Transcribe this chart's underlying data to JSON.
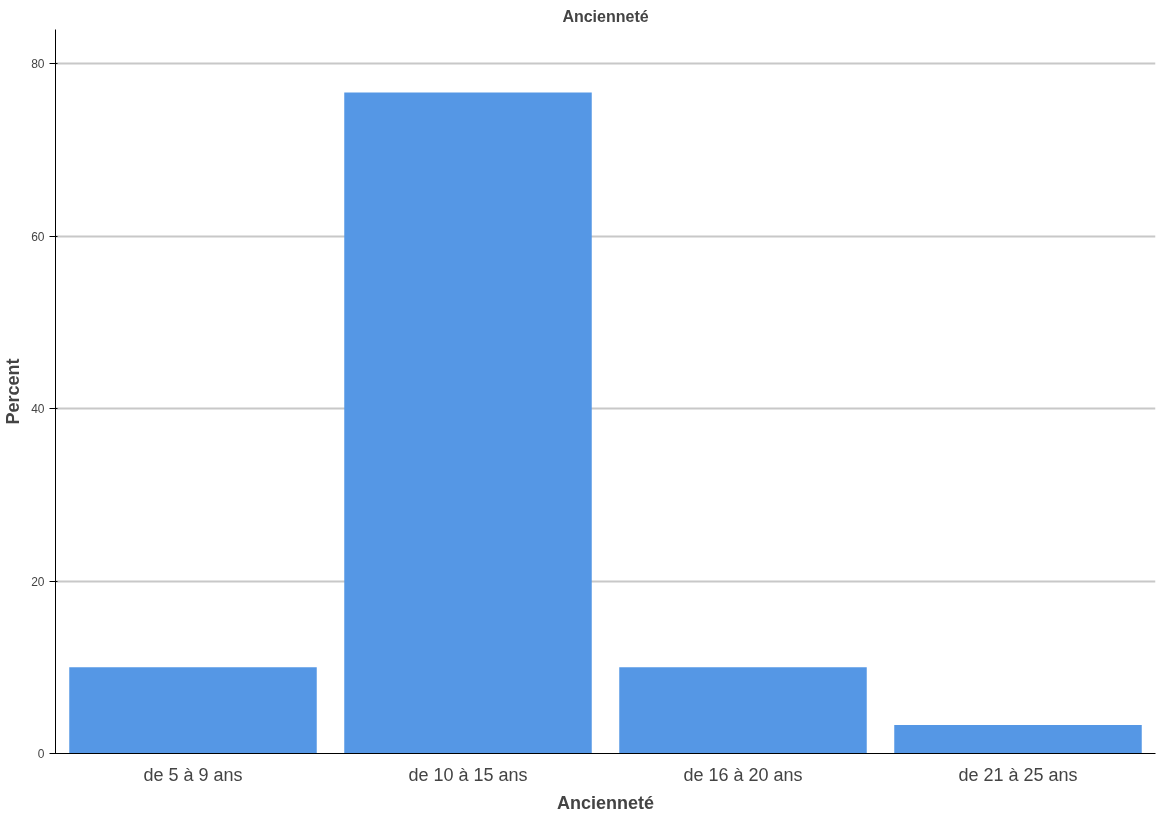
{
  "chart_data": {
    "type": "bar",
    "title": "Ancienneté",
    "xlabel": "Ancienneté",
    "ylabel": "Percent",
    "categories": [
      "de 5 à 9 ans",
      "de 10 à 15 ans",
      "de 16 à 20 ans",
      "de 21 à 25 ans"
    ],
    "values": [
      10,
      76.7,
      10,
      3.3
    ],
    "color": "#5597e5",
    "ylim": [
      0,
      84
    ],
    "yticks": [
      0,
      20,
      40,
      60,
      80
    ],
    "grid": "y"
  }
}
